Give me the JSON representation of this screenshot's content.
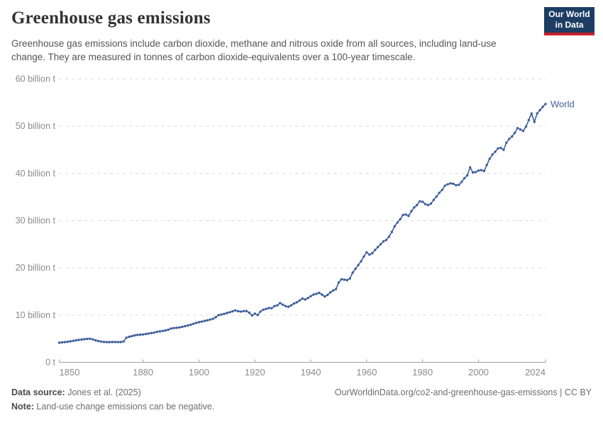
{
  "header": {
    "title": "Greenhouse gas emissions",
    "subtitle": "Greenhouse gas emissions include carbon dioxide, methane and nitrous oxide from all sources, including land-use change. They are measured in tonnes of carbon dioxide-equivalents over a 100-year timescale.",
    "logo": {
      "line1": "Our World",
      "line2": "in Data",
      "bg_color": "#1d3d63",
      "stripe_color": "#c7202e"
    }
  },
  "chart_data": {
    "type": "line",
    "title": "Greenhouse gas emissions",
    "xlabel": "",
    "ylabel": "",
    "unit": "tonnes of CO2-equivalents",
    "xlim": [
      1850,
      2024
    ],
    "ylim": [
      0,
      60
    ],
    "grid": true,
    "legend_position": "end-of-line",
    "x_start": 1850,
    "x_ticks": [
      1850,
      1880,
      1900,
      1920,
      1940,
      1960,
      1980,
      2000,
      2024
    ],
    "y_ticks": [
      {
        "value": 0,
        "label": "0 t"
      },
      {
        "value": 10,
        "label": "10 billion t"
      },
      {
        "value": 20,
        "label": "20 billion t"
      },
      {
        "value": 30,
        "label": "30 billion t"
      },
      {
        "value": 40,
        "label": "40 billion t"
      },
      {
        "value": 50,
        "label": "50 billion t"
      },
      {
        "value": 60,
        "label": "60 billion t"
      }
    ],
    "colors": {
      "grid": "#d9d9d9",
      "axis": "#a3a3a3",
      "tick_text": "#8b8b8b"
    },
    "series": [
      {
        "name": "World",
        "color": "#3e5f9b",
        "values": [
          4.15,
          4.22,
          4.28,
          4.35,
          4.45,
          4.55,
          4.65,
          4.75,
          4.82,
          4.9,
          4.95,
          5.0,
          4.85,
          4.65,
          4.5,
          4.4,
          4.32,
          4.28,
          4.28,
          4.3,
          4.3,
          4.28,
          4.3,
          4.4,
          5.2,
          5.4,
          5.55,
          5.7,
          5.8,
          5.85,
          5.9,
          6.0,
          6.1,
          6.2,
          6.3,
          6.45,
          6.55,
          6.65,
          6.75,
          6.9,
          7.15,
          7.25,
          7.3,
          7.4,
          7.5,
          7.65,
          7.8,
          7.95,
          8.15,
          8.35,
          8.5,
          8.62,
          8.76,
          8.9,
          9.05,
          9.22,
          9.55,
          10.0,
          10.12,
          10.25,
          10.45,
          10.6,
          10.8,
          11.0,
          10.82,
          10.74,
          10.84,
          10.86,
          10.5,
          9.92,
          10.3,
          10.02,
          10.74,
          11.15,
          11.3,
          11.5,
          11.46,
          11.9,
          12.06,
          12.55,
          12.2,
          11.9,
          11.76,
          12.06,
          12.45,
          12.7,
          13.1,
          13.5,
          13.3,
          13.62,
          14.0,
          14.35,
          14.5,
          14.7,
          14.35,
          13.95,
          14.25,
          14.8,
          15.2,
          15.5,
          16.9,
          17.6,
          17.5,
          17.4,
          17.75,
          19.0,
          19.8,
          20.6,
          21.4,
          22.4,
          23.3,
          22.8,
          23.1,
          23.8,
          24.4,
          25.0,
          25.6,
          25.9,
          26.6,
          27.6,
          28.8,
          29.6,
          30.3,
          31.2,
          31.3,
          31.0,
          32.0,
          32.8,
          33.3,
          34.1,
          34.0,
          33.5,
          33.3,
          33.6,
          34.4,
          35.1,
          35.9,
          36.5,
          37.4,
          37.7,
          37.9,
          37.8,
          37.5,
          37.6,
          38.2,
          39.0,
          39.6,
          41.3,
          40.2,
          40.3,
          40.6,
          40.7,
          40.5,
          41.8,
          43.1,
          44.0,
          44.6,
          45.3,
          45.4,
          45.0,
          46.5,
          47.3,
          47.8,
          48.6,
          49.6,
          49.3,
          49.0,
          49.9,
          51.3,
          52.7,
          50.9,
          52.7,
          53.4,
          54.1,
          54.7
        ]
      }
    ]
  },
  "footer": {
    "source_label": "Data source:",
    "source_value": "Jones et al. (2025)",
    "note_label": "Note:",
    "note_value": "Land-use change emissions can be negative.",
    "url": "OurWorldinData.org/co2-and-greenhouse-gas-emissions | CC BY"
  }
}
